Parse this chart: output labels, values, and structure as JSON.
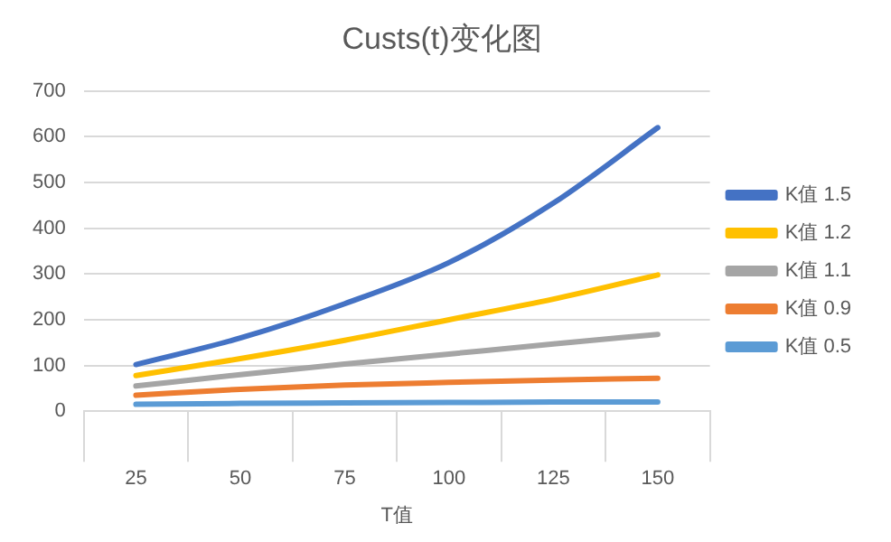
{
  "chart_data": {
    "type": "line",
    "title": "Custs(t)变化图",
    "xlabel": "T值",
    "categories": [
      "25",
      "50",
      "75",
      "100",
      "125",
      "150"
    ],
    "series": [
      {
        "name": "K值 1.5",
        "color": "#4472c4",
        "values": [
          102,
          160,
          235,
          325,
          455,
          620
        ]
      },
      {
        "name": "K值 1.2",
        "color": "#ffc000",
        "values": [
          78,
          115,
          155,
          200,
          245,
          298
        ]
      },
      {
        "name": "K值 1.1",
        "color": "#a5a5a5",
        "values": [
          55,
          80,
          103,
          125,
          147,
          168
        ]
      },
      {
        "name": "K值 0.9",
        "color": "#ed7d31",
        "values": [
          35,
          48,
          57,
          63,
          68,
          72
        ]
      },
      {
        "name": "K值 0.5",
        "color": "#5b9bd5",
        "values": [
          15,
          17,
          18,
          19,
          20,
          20
        ]
      }
    ],
    "ylim": [
      0,
      700
    ],
    "yticks": [
      0,
      100,
      200,
      300,
      400,
      500,
      600,
      700
    ],
    "grid": "y",
    "legend": "right",
    "marker": "none",
    "line_style": "solid"
  }
}
